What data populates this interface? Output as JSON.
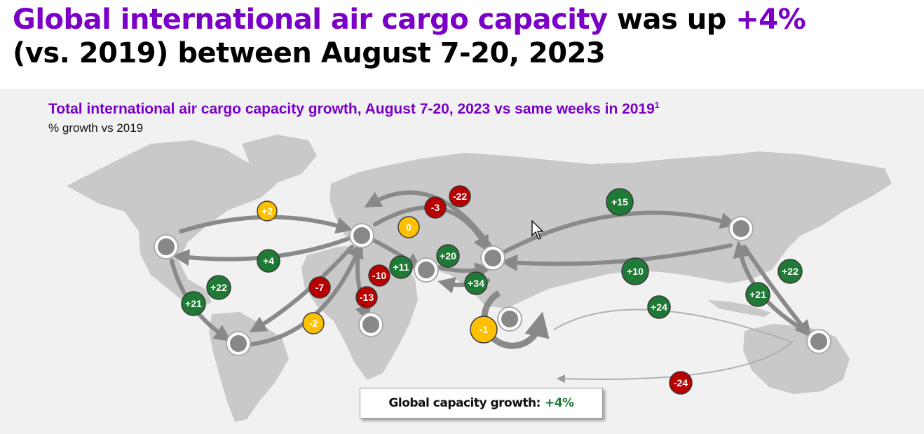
{
  "headline": {
    "part1": "Global international air cargo capacity",
    "part2": " was up ",
    "part3": "+4%",
    "part4": "(vs. 2019) between August 7-20, 2023"
  },
  "chart": {
    "subtitle": "Total international air cargo capacity growth, August 7-20, 2023 vs same weeks in 2019",
    "footnote_mark": "1",
    "unit": "% growth vs 2019"
  },
  "global": {
    "label": "Global capacity growth:",
    "value": "+4%"
  },
  "colors": {
    "positive": "#1e7a34",
    "negative": "#b70000",
    "neutral": "#ffc000",
    "headline_accent": "#7a00c8"
  },
  "badges": [
    {
      "id": "na-eu",
      "label": "+2",
      "status": "neutral"
    },
    {
      "id": "eu-na",
      "label": "+4",
      "status": "positive"
    },
    {
      "id": "eu-me",
      "label": "0",
      "status": "neutral"
    },
    {
      "id": "eu-ru",
      "label": "-3",
      "status": "negative"
    },
    {
      "id": "ru-as",
      "label": "-22",
      "status": "negative"
    },
    {
      "id": "as-na",
      "label": "+15",
      "status": "positive"
    },
    {
      "id": "me-as",
      "label": "+20",
      "status": "positive"
    },
    {
      "id": "as-me",
      "label": "+34",
      "status": "positive"
    },
    {
      "id": "eu-me2",
      "label": "+11",
      "status": "positive"
    },
    {
      "id": "eu-af",
      "label": "-10",
      "status": "negative"
    },
    {
      "id": "af-eu",
      "label": "-13",
      "status": "negative"
    },
    {
      "id": "eu-sa",
      "label": "-7",
      "status": "negative"
    },
    {
      "id": "sa-eu",
      "label": "-2",
      "status": "neutral"
    },
    {
      "id": "na-sa",
      "label": "+22",
      "status": "positive"
    },
    {
      "id": "sa-na",
      "label": "+21",
      "status": "positive"
    },
    {
      "id": "na-as",
      "label": "+10",
      "status": "positive"
    },
    {
      "id": "intra-as",
      "label": "-1",
      "status": "neutral"
    },
    {
      "id": "as-oc",
      "label": "+24",
      "status": "positive"
    },
    {
      "id": "asna-sa",
      "label": "+21",
      "status": "positive"
    },
    {
      "id": "asna-sa2",
      "label": "+22",
      "status": "positive"
    },
    {
      "id": "sa-oc",
      "label": "-24",
      "status": "negative"
    }
  ]
}
